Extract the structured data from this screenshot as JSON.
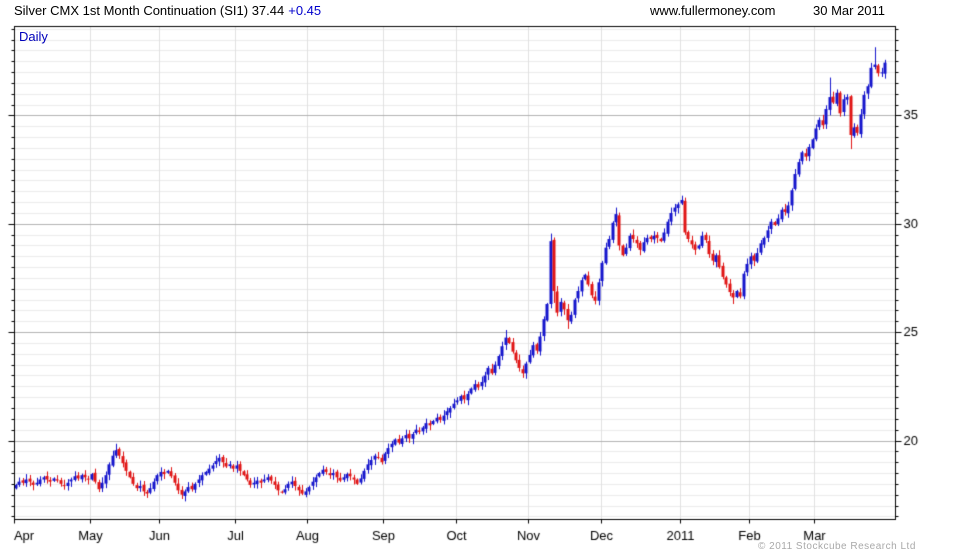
{
  "header": {
    "title": "Silver CMX 1st Month Continuation (SI1) 37.44",
    "change": "+0.45",
    "website": "www.fullermoney.com",
    "date": "30 Mar 2011"
  },
  "chart_label": "Daily",
  "footer": {
    "copyright": "© 2011 Stockcube Research Ltd"
  },
  "colors": {
    "up": "#1414cc",
    "down": "#e01414",
    "frame": "#000000",
    "grid_minor": "#ebebeb",
    "grid_major": "#b2b2b2",
    "grid_month": "#e0e0e0",
    "axis_text": "#000000"
  },
  "chart_data": {
    "type": "candlestick",
    "title": "Silver CMX 1st Month Continuation (SI1)",
    "timeframe": "Daily",
    "last_price": 37.44,
    "change": 0.45,
    "y_axis": {
      "min": 16.35,
      "max": 39.1,
      "major_ticks": [
        20,
        25,
        30,
        35
      ],
      "minor_step": 0.5,
      "labels_side": "right"
    },
    "x_axis": {
      "month_labels": [
        "Apr",
        "May",
        "Jun",
        "Jul",
        "Aug",
        "Sep",
        "Oct",
        "Nov",
        "Dec",
        "2011",
        "Feb",
        "Mar"
      ],
      "month_start_index": [
        0,
        22,
        42,
        64,
        85,
        107,
        128,
        149,
        170,
        193,
        213,
        232
      ]
    },
    "first_open": 17.85,
    "closes": [
      17.95,
      18.1,
      18.05,
      18.2,
      18.1,
      17.95,
      18.05,
      18.2,
      18.3,
      18.2,
      18.1,
      18.25,
      18.15,
      18.0,
      17.9,
      18.05,
      18.2,
      18.35,
      18.25,
      18.4,
      18.3,
      18.2,
      18.45,
      18.1,
      17.75,
      18.05,
      18.4,
      18.9,
      19.3,
      19.55,
      19.3,
      18.95,
      18.6,
      18.3,
      18.0,
      17.8,
      17.9,
      17.65,
      17.55,
      17.8,
      18.1,
      18.4,
      18.55,
      18.45,
      18.6,
      18.35,
      18.05,
      17.7,
      17.5,
      17.65,
      17.85,
      17.75,
      18.0,
      18.2,
      18.4,
      18.55,
      18.7,
      18.85,
      19.05,
      19.2,
      19.0,
      18.8,
      18.9,
      18.7,
      18.85,
      18.6,
      18.4,
      18.2,
      17.95,
      18.05,
      18.15,
      18.05,
      18.2,
      18.3,
      18.15,
      17.95,
      17.7,
      17.6,
      17.75,
      18.0,
      18.1,
      17.9,
      17.7,
      17.55,
      17.65,
      17.85,
      18.1,
      18.3,
      18.5,
      18.65,
      18.55,
      18.4,
      18.5,
      18.3,
      18.15,
      18.3,
      18.45,
      18.35,
      18.2,
      18.0,
      18.25,
      18.6,
      18.9,
      19.1,
      19.3,
      19.2,
      19.0,
      19.4,
      19.65,
      19.85,
      20.05,
      19.9,
      20.1,
      20.25,
      20.1,
      20.3,
      20.5,
      20.4,
      20.6,
      20.8,
      20.7,
      20.9,
      21.05,
      20.95,
      21.15,
      21.35,
      21.5,
      21.7,
      21.85,
      22.05,
      21.9,
      22.15,
      22.4,
      22.6,
      22.45,
      22.7,
      23.0,
      23.35,
      23.1,
      23.5,
      23.9,
      24.35,
      24.75,
      24.5,
      24.1,
      23.7,
      23.35,
      23.1,
      23.55,
      23.95,
      24.4,
      24.15,
      24.8,
      25.6,
      26.3,
      29.2,
      26.9,
      25.9,
      26.4,
      26.05,
      25.55,
      25.8,
      26.5,
      26.9,
      27.4,
      27.65,
      27.2,
      26.7,
      26.45,
      27.3,
      28.2,
      28.9,
      29.3,
      30.05,
      30.45,
      29.0,
      28.55,
      28.9,
      29.45,
      29.3,
      29.1,
      28.8,
      29.15,
      29.35,
      29.3,
      29.45,
      29.35,
      29.2,
      29.6,
      30.1,
      30.5,
      30.75,
      30.9,
      31.1,
      29.6,
      29.3,
      29.05,
      28.8,
      29.0,
      29.45,
      29.25,
      28.6,
      28.3,
      28.55,
      28.0,
      27.55,
      27.2,
      26.85,
      26.6,
      26.9,
      26.65,
      27.7,
      28.15,
      28.5,
      28.3,
      28.65,
      29.1,
      29.35,
      29.7,
      30.1,
      29.95,
      30.25,
      30.65,
      30.55,
      30.85,
      31.55,
      32.3,
      32.85,
      33.3,
      33.1,
      33.55,
      33.9,
      34.4,
      34.8,
      34.55,
      35.3,
      35.85,
      35.6,
      36.05,
      35.1,
      35.75,
      35.85,
      34.1,
      34.45,
      34.2,
      35.05,
      35.95,
      36.35,
      37.2,
      37.35,
      36.95,
      36.99,
      37.44
    ],
    "wick_overrides": {
      "29": {
        "h": 19.85
      },
      "38": {
        "l": 17.35
      },
      "48": {
        "l": 17.3
      },
      "142": {
        "h": 25.1
      },
      "155": {
        "h": 29.55,
        "l": 26.1
      },
      "156": {
        "l": 26.35
      },
      "160": {
        "l": 25.15
      },
      "174": {
        "h": 30.75
      },
      "193": {
        "h": 31.3
      },
      "208": {
        "l": 26.3
      },
      "236": {
        "h": 36.75
      },
      "242": {
        "l": 33.45
      },
      "249": {
        "h": 38.15
      }
    }
  }
}
